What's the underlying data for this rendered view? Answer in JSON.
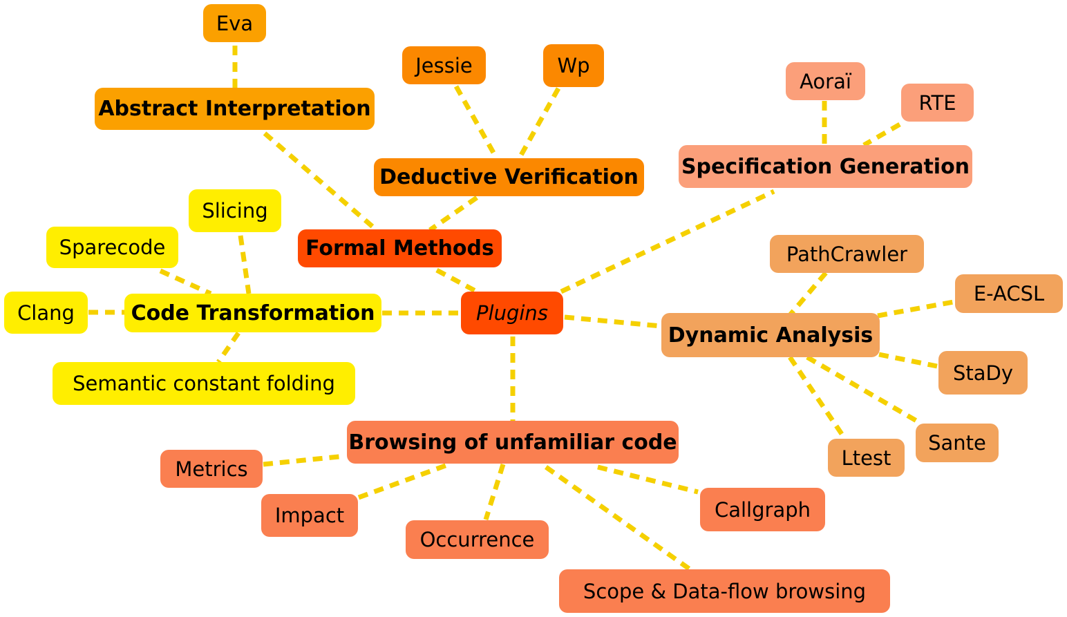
{
  "palette": {
    "edge": "#f5d000",
    "yellow": "#ffee00",
    "gold": "#fba000",
    "amber": "#fb8800",
    "salmon": "#fb9f7a",
    "sand": "#f2a35c",
    "coral": "#fa7f50",
    "root": "#ff4a00"
  },
  "diagram": {
    "root": {
      "label": "Plugins"
    },
    "formal": {
      "label": "Formal Methods"
    },
    "abstract": {
      "label": "Abstract Interpretation"
    },
    "eva": {
      "label": "Eva"
    },
    "deductive": {
      "label": "Deductive Verification"
    },
    "jessie": {
      "label": "Jessie"
    },
    "wp": {
      "label": "Wp"
    },
    "specgen": {
      "label": "Specification Generation"
    },
    "aorai": {
      "label": "Aoraï"
    },
    "rte": {
      "label": "RTE"
    },
    "codetrans": {
      "label": "Code Transformation"
    },
    "slicing": {
      "label": "Slicing"
    },
    "sparecode": {
      "label": "Sparecode"
    },
    "clang": {
      "label": "Clang"
    },
    "semfold": {
      "label": "Semantic constant folding"
    },
    "dynamic": {
      "label": "Dynamic Analysis"
    },
    "pathcrawler": {
      "label": "PathCrawler"
    },
    "eacsl": {
      "label": "E-ACSL"
    },
    "stady": {
      "label": "StaDy"
    },
    "sante": {
      "label": "Sante"
    },
    "ltest": {
      "label": "Ltest"
    },
    "browsing": {
      "label": "Browsing of unfamiliar code"
    },
    "metrics": {
      "label": "Metrics"
    },
    "impact": {
      "label": "Impact"
    },
    "occurrence": {
      "label": "Occurrence"
    },
    "callgraph": {
      "label": "Callgraph"
    },
    "scope": {
      "label": "Scope & Data-flow browsing"
    }
  }
}
